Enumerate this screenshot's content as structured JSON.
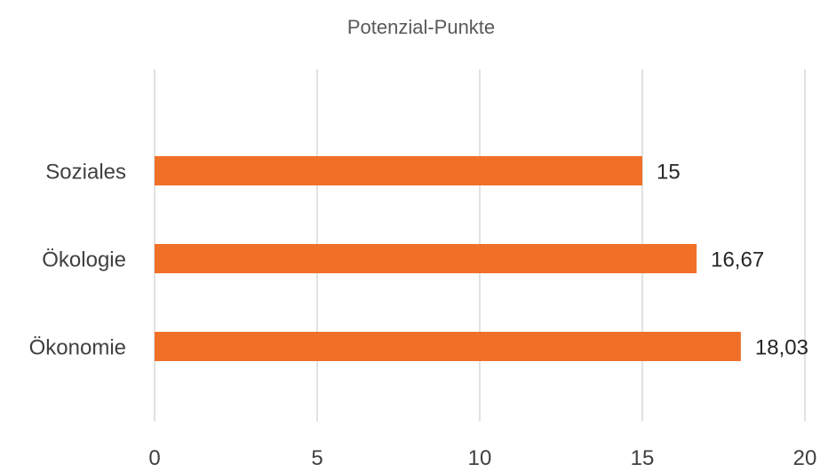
{
  "chart_data": {
    "type": "bar",
    "orientation": "horizontal",
    "title": "Potenzial-Punkte",
    "categories": [
      "Soziales",
      "Ökologie",
      "Ökonomie"
    ],
    "values": [
      15,
      16.67,
      18.03
    ],
    "data_labels": [
      "15",
      "16,67",
      "18,03"
    ],
    "xlim": [
      0,
      20
    ],
    "x_ticks": [
      0,
      5,
      10,
      15,
      20
    ],
    "x_tick_labels": [
      "0",
      "5",
      "10",
      "15",
      "20"
    ],
    "xlabel": "",
    "ylabel": "",
    "grid": "vertical",
    "legend": "none",
    "bar_color": "#F07028"
  }
}
